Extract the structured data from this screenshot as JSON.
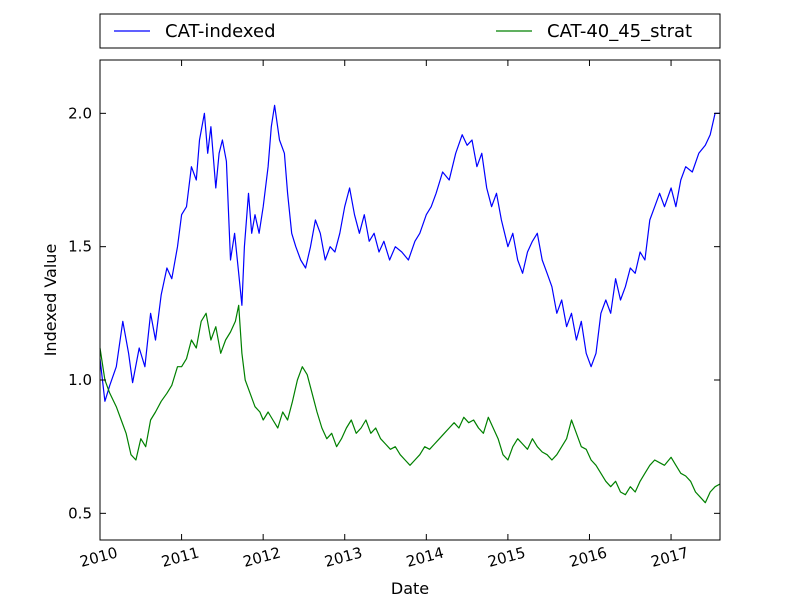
{
  "chart_data": {
    "type": "line",
    "title": "",
    "xlabel": "Date",
    "ylabel": "Indexed Value",
    "xlim": [
      2010.0,
      2017.6
    ],
    "ylim": [
      0.4,
      2.2
    ],
    "x_ticks": [
      {
        "value": 2010,
        "label": "2010"
      },
      {
        "value": 2011,
        "label": "2011"
      },
      {
        "value": 2012,
        "label": "2012"
      },
      {
        "value": 2013,
        "label": "2013"
      },
      {
        "value": 2014,
        "label": "2014"
      },
      {
        "value": 2015,
        "label": "2015"
      },
      {
        "value": 2016,
        "label": "2016"
      },
      {
        "value": 2017,
        "label": "2017"
      }
    ],
    "y_ticks": [
      {
        "value": 0.5,
        "label": "0.5"
      },
      {
        "value": 1.0,
        "label": "1.0"
      },
      {
        "value": 1.5,
        "label": "1.5"
      },
      {
        "value": 2.0,
        "label": "2.0"
      }
    ],
    "grid": false,
    "legend": {
      "placement": "top, above plot"
    },
    "series": [
      {
        "name": "CAT-indexed",
        "color": "#0000ff",
        "points": [
          [
            2010.0,
            1.08
          ],
          [
            2010.06,
            0.92
          ],
          [
            2010.12,
            0.98
          ],
          [
            2010.2,
            1.05
          ],
          [
            2010.28,
            1.22
          ],
          [
            2010.35,
            1.1
          ],
          [
            2010.4,
            0.99
          ],
          [
            2010.48,
            1.12
          ],
          [
            2010.55,
            1.05
          ],
          [
            2010.62,
            1.25
          ],
          [
            2010.68,
            1.15
          ],
          [
            2010.75,
            1.32
          ],
          [
            2010.82,
            1.42
          ],
          [
            2010.88,
            1.38
          ],
          [
            2010.95,
            1.5
          ],
          [
            2011.0,
            1.62
          ],
          [
            2011.06,
            1.65
          ],
          [
            2011.12,
            1.8
          ],
          [
            2011.18,
            1.75
          ],
          [
            2011.22,
            1.9
          ],
          [
            2011.28,
            2.0
          ],
          [
            2011.32,
            1.85
          ],
          [
            2011.36,
            1.95
          ],
          [
            2011.42,
            1.72
          ],
          [
            2011.46,
            1.85
          ],
          [
            2011.5,
            1.9
          ],
          [
            2011.55,
            1.82
          ],
          [
            2011.6,
            1.45
          ],
          [
            2011.65,
            1.55
          ],
          [
            2011.7,
            1.4
          ],
          [
            2011.74,
            1.28
          ],
          [
            2011.77,
            1.5
          ],
          [
            2011.82,
            1.7
          ],
          [
            2011.86,
            1.55
          ],
          [
            2011.9,
            1.62
          ],
          [
            2011.95,
            1.55
          ],
          [
            2012.0,
            1.65
          ],
          [
            2012.06,
            1.8
          ],
          [
            2012.1,
            1.95
          ],
          [
            2012.14,
            2.03
          ],
          [
            2012.2,
            1.9
          ],
          [
            2012.26,
            1.85
          ],
          [
            2012.3,
            1.7
          ],
          [
            2012.35,
            1.55
          ],
          [
            2012.4,
            1.5
          ],
          [
            2012.46,
            1.45
          ],
          [
            2012.52,
            1.42
          ],
          [
            2012.58,
            1.5
          ],
          [
            2012.64,
            1.6
          ],
          [
            2012.7,
            1.55
          ],
          [
            2012.76,
            1.45
          ],
          [
            2012.82,
            1.5
          ],
          [
            2012.88,
            1.48
          ],
          [
            2012.94,
            1.55
          ],
          [
            2013.0,
            1.65
          ],
          [
            2013.06,
            1.72
          ],
          [
            2013.12,
            1.62
          ],
          [
            2013.18,
            1.55
          ],
          [
            2013.24,
            1.62
          ],
          [
            2013.3,
            1.52
          ],
          [
            2013.36,
            1.55
          ],
          [
            2013.42,
            1.48
          ],
          [
            2013.48,
            1.52
          ],
          [
            2013.55,
            1.45
          ],
          [
            2013.62,
            1.5
          ],
          [
            2013.7,
            1.48
          ],
          [
            2013.78,
            1.45
          ],
          [
            2013.86,
            1.52
          ],
          [
            2013.92,
            1.55
          ],
          [
            2014.0,
            1.62
          ],
          [
            2014.06,
            1.65
          ],
          [
            2014.12,
            1.7
          ],
          [
            2014.2,
            1.78
          ],
          [
            2014.28,
            1.75
          ],
          [
            2014.36,
            1.85
          ],
          [
            2014.44,
            1.92
          ],
          [
            2014.5,
            1.88
          ],
          [
            2014.56,
            1.9
          ],
          [
            2014.62,
            1.8
          ],
          [
            2014.68,
            1.85
          ],
          [
            2014.74,
            1.72
          ],
          [
            2014.8,
            1.65
          ],
          [
            2014.86,
            1.7
          ],
          [
            2014.92,
            1.6
          ],
          [
            2015.0,
            1.5
          ],
          [
            2015.06,
            1.55
          ],
          [
            2015.12,
            1.45
          ],
          [
            2015.18,
            1.4
          ],
          [
            2015.24,
            1.48
          ],
          [
            2015.3,
            1.52
          ],
          [
            2015.36,
            1.55
          ],
          [
            2015.42,
            1.45
          ],
          [
            2015.48,
            1.4
          ],
          [
            2015.54,
            1.35
          ],
          [
            2015.6,
            1.25
          ],
          [
            2015.66,
            1.3
          ],
          [
            2015.72,
            1.2
          ],
          [
            2015.78,
            1.25
          ],
          [
            2015.84,
            1.15
          ],
          [
            2015.9,
            1.22
          ],
          [
            2015.96,
            1.1
          ],
          [
            2016.02,
            1.05
          ],
          [
            2016.08,
            1.1
          ],
          [
            2016.14,
            1.25
          ],
          [
            2016.2,
            1.3
          ],
          [
            2016.26,
            1.25
          ],
          [
            2016.32,
            1.38
          ],
          [
            2016.38,
            1.3
          ],
          [
            2016.44,
            1.35
          ],
          [
            2016.5,
            1.42
          ],
          [
            2016.56,
            1.4
          ],
          [
            2016.62,
            1.48
          ],
          [
            2016.68,
            1.45
          ],
          [
            2016.74,
            1.6
          ],
          [
            2016.8,
            1.65
          ],
          [
            2016.86,
            1.7
          ],
          [
            2016.92,
            1.65
          ],
          [
            2017.0,
            1.72
          ],
          [
            2017.06,
            1.65
          ],
          [
            2017.12,
            1.75
          ],
          [
            2017.18,
            1.8
          ],
          [
            2017.26,
            1.78
          ],
          [
            2017.34,
            1.85
          ],
          [
            2017.42,
            1.88
          ],
          [
            2017.48,
            1.92
          ],
          [
            2017.54,
            2.0
          ],
          [
            2017.6,
            2.0
          ]
        ]
      },
      {
        "name": "CAT-40_45_strat",
        "color": "#008000",
        "points": [
          [
            2010.0,
            1.12
          ],
          [
            2010.06,
            1.0
          ],
          [
            2010.12,
            0.95
          ],
          [
            2010.2,
            0.9
          ],
          [
            2010.26,
            0.85
          ],
          [
            2010.32,
            0.8
          ],
          [
            2010.38,
            0.72
          ],
          [
            2010.44,
            0.7
          ],
          [
            2010.5,
            0.78
          ],
          [
            2010.56,
            0.75
          ],
          [
            2010.62,
            0.85
          ],
          [
            2010.68,
            0.88
          ],
          [
            2010.75,
            0.92
          ],
          [
            2010.82,
            0.95
          ],
          [
            2010.88,
            0.98
          ],
          [
            2010.95,
            1.05
          ],
          [
            2011.0,
            1.05
          ],
          [
            2011.06,
            1.08
          ],
          [
            2011.12,
            1.15
          ],
          [
            2011.18,
            1.12
          ],
          [
            2011.24,
            1.22
          ],
          [
            2011.3,
            1.25
          ],
          [
            2011.36,
            1.15
          ],
          [
            2011.42,
            1.2
          ],
          [
            2011.48,
            1.1
          ],
          [
            2011.54,
            1.15
          ],
          [
            2011.6,
            1.18
          ],
          [
            2011.66,
            1.22
          ],
          [
            2011.7,
            1.28
          ],
          [
            2011.74,
            1.1
          ],
          [
            2011.78,
            1.0
          ],
          [
            2011.84,
            0.95
          ],
          [
            2011.9,
            0.9
          ],
          [
            2011.96,
            0.88
          ],
          [
            2012.0,
            0.85
          ],
          [
            2012.06,
            0.88
          ],
          [
            2012.12,
            0.85
          ],
          [
            2012.18,
            0.82
          ],
          [
            2012.24,
            0.88
          ],
          [
            2012.3,
            0.85
          ],
          [
            2012.36,
            0.92
          ],
          [
            2012.42,
            1.0
          ],
          [
            2012.48,
            1.05
          ],
          [
            2012.54,
            1.02
          ],
          [
            2012.6,
            0.95
          ],
          [
            2012.66,
            0.88
          ],
          [
            2012.72,
            0.82
          ],
          [
            2012.78,
            0.78
          ],
          [
            2012.84,
            0.8
          ],
          [
            2012.9,
            0.75
          ],
          [
            2012.96,
            0.78
          ],
          [
            2013.02,
            0.82
          ],
          [
            2013.08,
            0.85
          ],
          [
            2013.14,
            0.8
          ],
          [
            2013.2,
            0.82
          ],
          [
            2013.26,
            0.85
          ],
          [
            2013.32,
            0.8
          ],
          [
            2013.38,
            0.82
          ],
          [
            2013.44,
            0.78
          ],
          [
            2013.5,
            0.76
          ],
          [
            2013.56,
            0.74
          ],
          [
            2013.62,
            0.75
          ],
          [
            2013.68,
            0.72
          ],
          [
            2013.74,
            0.7
          ],
          [
            2013.8,
            0.68
          ],
          [
            2013.86,
            0.7
          ],
          [
            2013.92,
            0.72
          ],
          [
            2013.98,
            0.75
          ],
          [
            2014.04,
            0.74
          ],
          [
            2014.1,
            0.76
          ],
          [
            2014.16,
            0.78
          ],
          [
            2014.22,
            0.8
          ],
          [
            2014.28,
            0.82
          ],
          [
            2014.34,
            0.84
          ],
          [
            2014.4,
            0.82
          ],
          [
            2014.46,
            0.86
          ],
          [
            2014.52,
            0.84
          ],
          [
            2014.58,
            0.85
          ],
          [
            2014.64,
            0.82
          ],
          [
            2014.7,
            0.8
          ],
          [
            2014.76,
            0.86
          ],
          [
            2014.82,
            0.82
          ],
          [
            2014.88,
            0.78
          ],
          [
            2014.94,
            0.72
          ],
          [
            2015.0,
            0.7
          ],
          [
            2015.06,
            0.75
          ],
          [
            2015.12,
            0.78
          ],
          [
            2015.18,
            0.76
          ],
          [
            2015.24,
            0.74
          ],
          [
            2015.3,
            0.78
          ],
          [
            2015.36,
            0.75
          ],
          [
            2015.42,
            0.73
          ],
          [
            2015.48,
            0.72
          ],
          [
            2015.54,
            0.7
          ],
          [
            2015.6,
            0.72
          ],
          [
            2015.66,
            0.75
          ],
          [
            2015.72,
            0.78
          ],
          [
            2015.78,
            0.85
          ],
          [
            2015.84,
            0.8
          ],
          [
            2015.9,
            0.75
          ],
          [
            2015.96,
            0.74
          ],
          [
            2016.02,
            0.7
          ],
          [
            2016.08,
            0.68
          ],
          [
            2016.14,
            0.65
          ],
          [
            2016.2,
            0.62
          ],
          [
            2016.26,
            0.6
          ],
          [
            2016.32,
            0.62
          ],
          [
            2016.38,
            0.58
          ],
          [
            2016.44,
            0.57
          ],
          [
            2016.5,
            0.6
          ],
          [
            2016.56,
            0.58
          ],
          [
            2016.62,
            0.62
          ],
          [
            2016.68,
            0.65
          ],
          [
            2016.74,
            0.68
          ],
          [
            2016.8,
            0.7
          ],
          [
            2016.86,
            0.69
          ],
          [
            2016.92,
            0.68
          ],
          [
            2017.0,
            0.71
          ],
          [
            2017.06,
            0.68
          ],
          [
            2017.12,
            0.65
          ],
          [
            2017.18,
            0.64
          ],
          [
            2017.24,
            0.62
          ],
          [
            2017.3,
            0.58
          ],
          [
            2017.36,
            0.56
          ],
          [
            2017.42,
            0.54
          ],
          [
            2017.48,
            0.58
          ],
          [
            2017.54,
            0.6
          ],
          [
            2017.6,
            0.61
          ]
        ]
      }
    ]
  }
}
